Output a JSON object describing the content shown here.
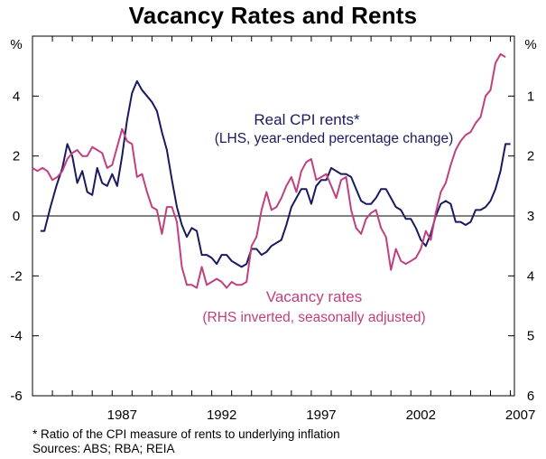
{
  "chart_data": {
    "type": "line",
    "title": "Vacancy Rates and Rents",
    "left_axis": {
      "unit": "%",
      "min": -6,
      "max": 6,
      "ticks": [
        4,
        2,
        0,
        -2,
        -4,
        -6
      ]
    },
    "right_axis": {
      "unit": "%",
      "min": 0,
      "max": 6,
      "inverted": true,
      "ticks": [
        1,
        2,
        3,
        4,
        5,
        6
      ]
    },
    "x_axis": {
      "min": 1983.0,
      "max": 2007.2,
      "tick_labels": [
        "1987",
        "1992",
        "1997",
        "2002",
        "2007"
      ]
    },
    "grid": false,
    "series": [
      {
        "name": "Real CPI rents*",
        "note": "(LHS, year-ended percentage change)",
        "color": "#1a1a5e",
        "axis": "left",
        "x": [
          1983.4,
          1983.6,
          1983.9,
          1984.2,
          1984.5,
          1984.75,
          1985.0,
          1985.25,
          1985.5,
          1985.75,
          1986.0,
          1986.25,
          1986.5,
          1986.75,
          1987.0,
          1987.25,
          1987.5,
          1987.75,
          1988.0,
          1988.25,
          1988.5,
          1988.75,
          1989.0,
          1989.25,
          1989.5,
          1989.75,
          1990.0,
          1990.25,
          1990.5,
          1990.75,
          1991.0,
          1991.25,
          1991.5,
          1991.75,
          1992.0,
          1992.25,
          1992.5,
          1992.75,
          1993.0,
          1993.25,
          1993.5,
          1993.75,
          1994.0,
          1994.25,
          1994.5,
          1994.75,
          1995.0,
          1995.25,
          1995.5,
          1995.75,
          1996.0,
          1996.25,
          1996.5,
          1996.75,
          1997.0,
          1997.25,
          1997.5,
          1997.75,
          1998.0,
          1998.25,
          1998.5,
          1998.75,
          1999.0,
          1999.25,
          1999.5,
          1999.75,
          2000.0,
          2000.25,
          2000.5,
          2000.75,
          2001.0,
          2001.25,
          2001.5,
          2001.75,
          2002.0,
          2002.25,
          2002.5,
          2002.75,
          2003.0,
          2003.25,
          2003.5,
          2003.75,
          2004.0,
          2004.25,
          2004.5,
          2004.75,
          2005.0,
          2005.25,
          2005.5,
          2005.75,
          2006.0,
          2006.25,
          2006.5,
          2006.75,
          2007.0
        ],
        "values": [
          -0.5,
          -0.5,
          0.3,
          1.0,
          1.6,
          2.4,
          2.0,
          1.1,
          1.5,
          0.8,
          0.7,
          1.6,
          1.1,
          1.0,
          1.4,
          1.0,
          2.0,
          3.2,
          4.1,
          4.5,
          4.2,
          4.0,
          3.8,
          3.5,
          2.8,
          2.2,
          1.2,
          0.3,
          -0.3,
          -0.7,
          -0.4,
          -0.5,
          -1.3,
          -1.3,
          -1.4,
          -1.6,
          -1.3,
          -1.3,
          -1.5,
          -1.6,
          -1.7,
          -1.6,
          -1.1,
          -1.1,
          -1.3,
          -1.2,
          -1.0,
          -0.9,
          -0.8,
          -0.3,
          0.3,
          0.6,
          0.9,
          0.9,
          0.4,
          1.0,
          1.2,
          1.2,
          1.6,
          1.5,
          1.4,
          1.4,
          1.3,
          0.9,
          0.5,
          0.4,
          0.4,
          0.6,
          0.9,
          0.9,
          0.6,
          0.3,
          0.2,
          -0.1,
          -0.1,
          -0.4,
          -0.8,
          -1.0,
          -0.6,
          0.0,
          0.4,
          0.5,
          0.4,
          -0.2,
          -0.2,
          -0.3,
          -0.2,
          0.2,
          0.2,
          0.3,
          0.5,
          0.9,
          1.5,
          2.4,
          2.4
        ],
        "line_style": "solid"
      },
      {
        "name": "Vacancy rates",
        "note": "(RHS inverted, seasonally adjusted)",
        "color": "#c0407f",
        "axis": "right",
        "x": [
          1983.0,
          1983.25,
          1983.5,
          1983.75,
          1984.0,
          1984.25,
          1984.5,
          1984.75,
          1985.0,
          1985.25,
          1985.5,
          1985.75,
          1986.0,
          1986.25,
          1986.5,
          1986.75,
          1987.0,
          1987.25,
          1987.5,
          1987.75,
          1988.0,
          1988.25,
          1988.5,
          1988.75,
          1989.0,
          1989.25,
          1989.5,
          1989.75,
          1990.0,
          1990.25,
          1990.5,
          1990.75,
          1991.0,
          1991.25,
          1991.5,
          1991.75,
          1992.0,
          1992.25,
          1992.5,
          1992.75,
          1993.0,
          1993.25,
          1993.5,
          1993.75,
          1994.0,
          1994.25,
          1994.5,
          1994.75,
          1995.0,
          1995.25,
          1995.5,
          1995.75,
          1996.0,
          1996.25,
          1996.5,
          1996.75,
          1997.0,
          1997.25,
          1997.5,
          1997.75,
          1998.0,
          1998.25,
          1998.5,
          1998.75,
          1999.0,
          1999.25,
          1999.5,
          1999.75,
          2000.0,
          2000.25,
          2000.5,
          2000.75,
          2001.0,
          2001.25,
          2001.5,
          2001.75,
          2002.0,
          2002.25,
          2002.5,
          2002.75,
          2003.0,
          2003.25,
          2003.5,
          2003.75,
          2004.0,
          2004.25,
          2004.5,
          2004.75,
          2005.0,
          2005.25,
          2005.5,
          2005.75,
          2006.0,
          2006.25,
          2006.5,
          2006.75
        ],
        "values": [
          2.2,
          2.25,
          2.2,
          2.25,
          2.4,
          2.35,
          2.25,
          2.05,
          1.95,
          1.9,
          2.0,
          2.0,
          1.85,
          1.9,
          1.95,
          2.2,
          2.15,
          1.85,
          1.55,
          1.75,
          1.8,
          2.35,
          2.3,
          2.6,
          2.85,
          2.9,
          3.3,
          2.85,
          2.85,
          3.1,
          3.85,
          4.15,
          4.15,
          4.2,
          3.85,
          4.15,
          4.1,
          4.05,
          4.1,
          4.2,
          4.1,
          4.15,
          4.15,
          4.1,
          3.5,
          3.35,
          2.9,
          2.6,
          2.9,
          2.85,
          2.7,
          2.5,
          2.35,
          2.6,
          2.25,
          2.1,
          2.05,
          2.4,
          2.35,
          2.3,
          2.5,
          2.7,
          2.4,
          2.35,
          2.9,
          3.2,
          3.3,
          3.05,
          2.95,
          2.9,
          3.2,
          3.35,
          3.9,
          3.55,
          3.75,
          3.8,
          3.75,
          3.7,
          3.55,
          3.25,
          3.4,
          2.95,
          2.6,
          2.45,
          2.15,
          1.9,
          1.75,
          1.65,
          1.6,
          1.45,
          1.35,
          1.0,
          0.9,
          0.45,
          0.3,
          0.35
        ],
        "line_style": "solid"
      }
    ],
    "footnote": "*   Ratio of the CPI measure of rents to underlying inflation",
    "sources": "Sources: ABS; RBA; REIA"
  }
}
